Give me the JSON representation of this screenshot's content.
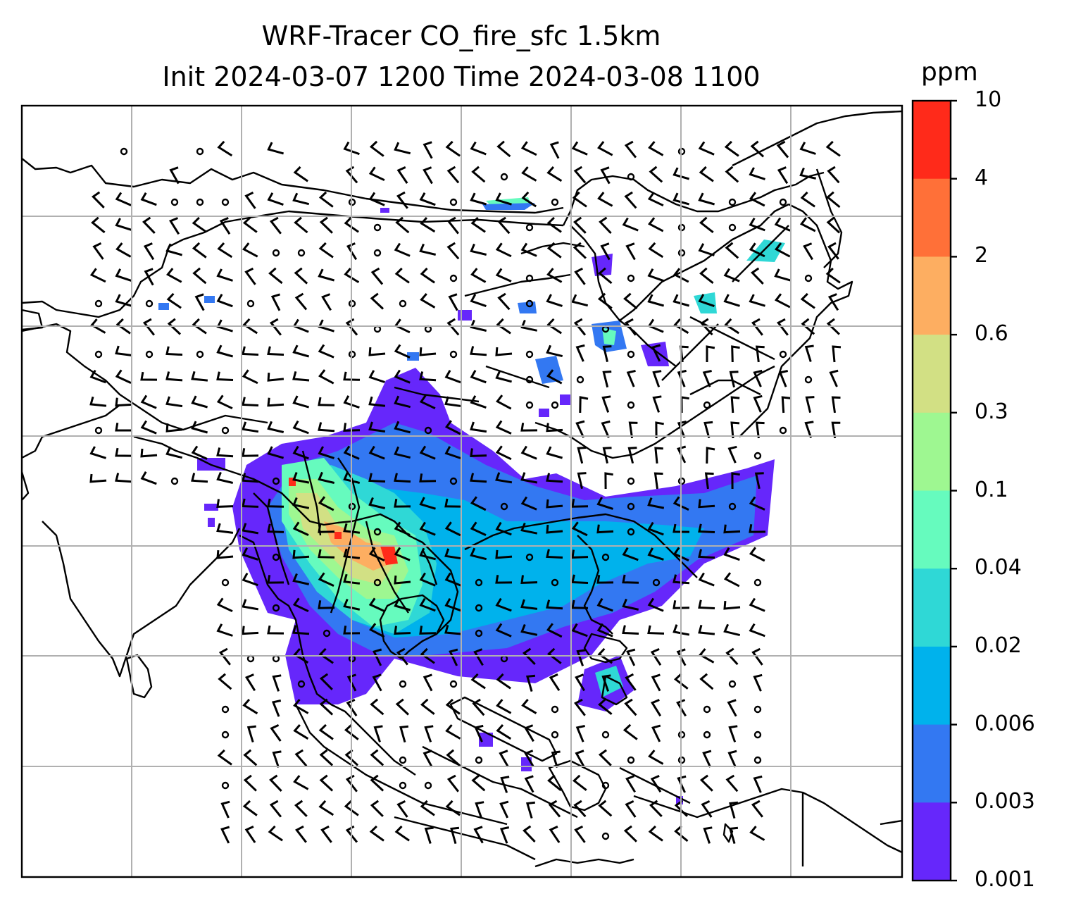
{
  "title_line1": "WRF-Tracer CO_fire_sfc 1.5km",
  "title_line2": "Init 2024-03-07 1200 Time 2024-03-08 1100",
  "colorbar": {
    "unit": "ppm",
    "levels": [
      "10",
      "4",
      "2",
      "0.6",
      "0.3",
      "0.1",
      "0.04",
      "0.02",
      "0.006",
      "0.003",
      "0.001"
    ],
    "colors": [
      "#ff2a1a",
      "#ff7038",
      "#fdae61",
      "#d2e084",
      "#9ef791",
      "#66fbbe",
      "#2fd8d6",
      "#00b2ec",
      "#3378f2",
      "#6627fb"
    ]
  },
  "map": {
    "coastline_color": "#000000",
    "grid_color": "#b0b0b0",
    "plume_colors": {
      "lowest": "#6627fb",
      "low": "#3378f2",
      "mid_low": "#00b2ec",
      "mid": "#2fd8d6",
      "mid_high": "#66fbbe",
      "high": "#9ef791",
      "higher": "#d2e084",
      "very_high": "#fdae61",
      "peak": "#ff2a1a"
    }
  }
}
